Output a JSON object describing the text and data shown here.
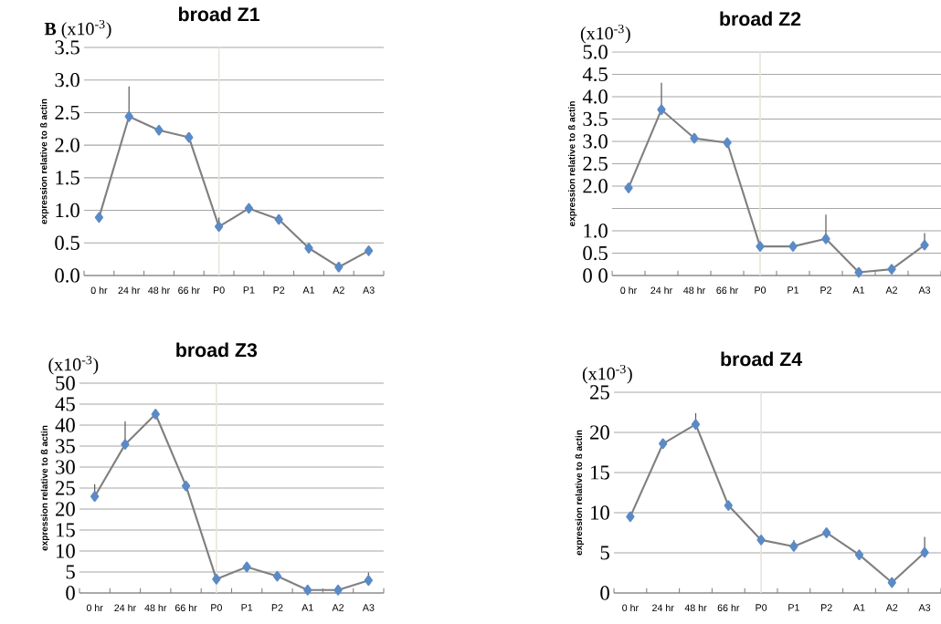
{
  "chart_data": [
    {
      "type": "line",
      "title": "broad Z1",
      "ylabel": "expression relative to ß actin",
      "annotations": [
        "**B** (x10$^{-3}$)"
      ],
      "categories": [
        "0 hr",
        "24 hr",
        "48 hr",
        "66 hr",
        "P0",
        "P1",
        "P2",
        "A1",
        "A2",
        "A3"
      ],
      "series": [
        {
          "color": "#5b8ac6",
          "values": [
            0.89,
            2.44,
            2.23,
            2.12,
            0.75,
            1.03,
            0.86,
            0.42,
            0.13,
            0.38
          ],
          "errors": [
            null,
            [
              2.44,
              2.9
            ],
            null,
            null,
            [
              0.75,
              0.89
            ],
            null,
            null,
            null,
            null,
            null
          ]
        }
      ],
      "ylim": [
        0,
        3.5
      ],
      "yticks": [
        {
          "value": 0,
          "label": "0.0"
        },
        {
          "value": 0.5,
          "label": "0.5"
        },
        {
          "value": 1,
          "label": "1.0"
        },
        {
          "value": 1.5,
          "label": "1.5"
        },
        {
          "value": 2,
          "label": "2.0"
        },
        {
          "value": 2.5,
          "label": "2.5"
        },
        {
          "value": 3,
          "label": "3.0"
        },
        {
          "value": 3.5,
          "label": "3.5"
        }
      ],
      "grid": "y",
      "marker": "diamond",
      "ref_lines": [
        {
          "axis": "x",
          "value": "P0",
          "color": "#e6e6dc"
        }
      ]
    },
    {
      "type": "line",
      "title": "broad Z2",
      "ylabel": "expression relative to ß actin",
      "annotations": [
        "(x10$^{-3}$)"
      ],
      "categories": [
        "0 hr",
        "24 hr",
        "48 hr",
        "66 hr",
        "P0",
        "P1",
        "P2",
        "A1",
        "A2",
        "A3"
      ],
      "series": [
        {
          "color": "#5b8ac6",
          "values": [
            1.96,
            3.71,
            3.07,
            2.97,
            0.65,
            0.65,
            0.82,
            0.07,
            0.14,
            0.68
          ],
          "errors": [
            null,
            [
              3.71,
              4.31
            ],
            null,
            null,
            null,
            null,
            [
              0.82,
              1.36
            ],
            null,
            null,
            [
              0.68,
              0.95
            ]
          ]
        }
      ],
      "ylim": [
        0,
        5
      ],
      "yticks": [
        {
          "value": 0,
          "label": "0 0"
        },
        {
          "value": 0.5,
          "label": "0.5"
        },
        {
          "value": 1,
          "label": "1.0"
        },
        {
          "value": 1.5,
          "label": null
        },
        {
          "value": 2,
          "label": "2.0"
        },
        {
          "value": 2.5,
          "label": "2.5"
        },
        {
          "value": 3,
          "label": "3.0"
        },
        {
          "value": 3.5,
          "label": "3.5"
        },
        {
          "value": 4,
          "label": "4.0"
        },
        {
          "value": 4.5,
          "label": "4.5"
        },
        {
          "value": 5,
          "label": "5.0"
        }
      ],
      "grid": "y",
      "marker": "diamond",
      "ref_lines": [
        {
          "axis": "x",
          "value": "P0",
          "color": "#e6e6dc"
        }
      ]
    },
    {
      "type": "line",
      "title": "broad Z3",
      "ylabel": "expression relative to ß actin",
      "annotations": [
        "(x10$^{-3}$)"
      ],
      "categories": [
        "0 hr",
        "24 hr",
        "48 hr",
        "66 hr",
        "P0",
        "P1",
        "P2",
        "A1",
        "A2",
        "A3"
      ],
      "series": [
        {
          "color": "#5b8ac6",
          "values": [
            23.0,
            35.4,
            42.6,
            25.5,
            3.3,
            6.2,
            4.0,
            0.7,
            0.7,
            3.0
          ],
          "errors": [
            [
              23.0,
              25.9
            ],
            [
              35.4,
              40.9
            ],
            null,
            null,
            null,
            null,
            null,
            null,
            null,
            [
              3.0,
              4.9
            ]
          ]
        }
      ],
      "ylim": [
        0,
        50
      ],
      "yticks": [
        0,
        5,
        10,
        15,
        20,
        25,
        30,
        35,
        40,
        45,
        50
      ],
      "grid": "y",
      "marker": "diamond",
      "ref_lines": [
        {
          "axis": "x",
          "value": "P0",
          "color": "#e6e6dc"
        }
      ]
    },
    {
      "type": "line",
      "title": "broad Z4",
      "ylabel": "expression relative to ß actin",
      "annotations": [
        "(x10$^{-3}$)"
      ],
      "categories": [
        "0 hr",
        "24 hr",
        "48 hr",
        "66 hr",
        "P0",
        "P1",
        "P2",
        "A1",
        "A2",
        "A3"
      ],
      "series": [
        {
          "color": "#5b8ac6",
          "values": [
            9.5,
            18.6,
            21.0,
            10.9,
            6.6,
            5.8,
            7.5,
            4.75,
            1.3,
            5.05
          ],
          "errors": [
            null,
            null,
            [
              21.0,
              22.4
            ],
            null,
            null,
            [
              5.8,
              6.6
            ],
            null,
            null,
            null,
            [
              5.05,
              7.0
            ]
          ]
        }
      ],
      "ylim": [
        0,
        25
      ],
      "yticks": [
        0,
        5,
        10,
        15,
        20,
        25
      ],
      "grid": "y",
      "marker": "diamond",
      "ref_lines": [
        {
          "axis": "x",
          "value": "P0",
          "color": "#e6e6dc"
        }
      ]
    }
  ]
}
